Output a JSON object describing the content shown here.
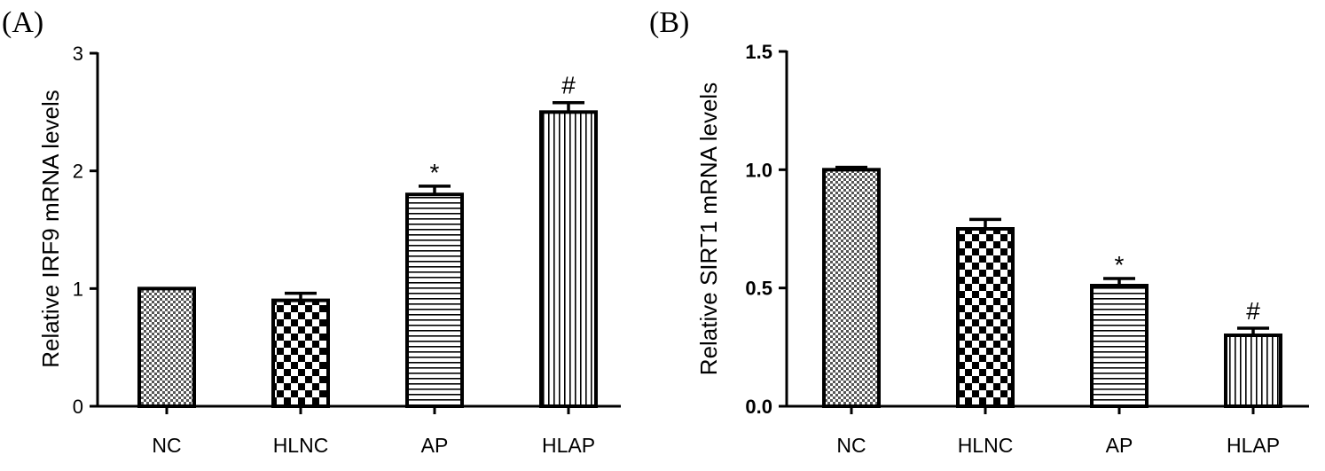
{
  "chart_data": [
    {
      "panel_label": "(A)",
      "type": "bar",
      "ylabel": "Relative IRF9 mRNA levels",
      "xlabel": "",
      "categories": [
        "NC",
        "HLNC",
        "AP",
        "HLAP"
      ],
      "values": [
        1.0,
        0.9,
        1.8,
        2.5
      ],
      "errors": [
        0.0,
        0.06,
        0.07,
        0.08
      ],
      "annotations": [
        "",
        "",
        "*",
        "#"
      ],
      "patterns": [
        "fine-check",
        "check",
        "horizontal",
        "vertical"
      ],
      "ylim": [
        0,
        3
      ],
      "yticks": [
        0,
        1,
        2,
        3
      ],
      "ytick_labels": [
        "0",
        "1",
        "2",
        "3"
      ],
      "grid": false
    },
    {
      "panel_label": "(B)",
      "type": "bar",
      "ylabel": "Relative SIRT1 mRNA levels",
      "xlabel": "",
      "categories": [
        "NC",
        "HLNC",
        "AP",
        "HLAP"
      ],
      "values": [
        1.0,
        0.75,
        0.51,
        0.3
      ],
      "errors": [
        0.01,
        0.04,
        0.03,
        0.03
      ],
      "annotations": [
        "",
        "",
        "*",
        "#"
      ],
      "patterns": [
        "fine-check",
        "check",
        "horizontal",
        "vertical"
      ],
      "ylim": [
        0,
        1.5
      ],
      "yticks": [
        0,
        0.5,
        1.0,
        1.5
      ],
      "ytick_labels": [
        "0.0",
        "0.5",
        "1.0",
        "1.5"
      ],
      "grid": false
    }
  ]
}
